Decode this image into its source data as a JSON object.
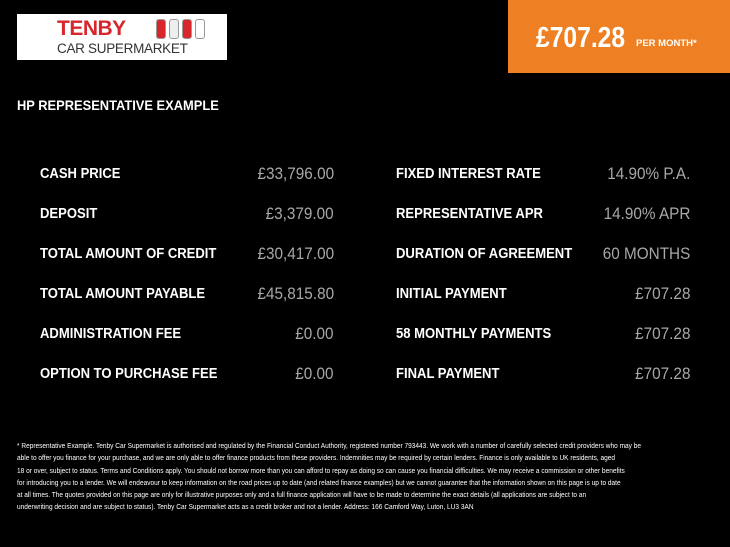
{
  "logo": {
    "line1": "TENBY",
    "line2": "CAR SUPERMARKET"
  },
  "badge": {
    "price": "£707.28",
    "per": "PER MONTH*",
    "color": "#ee7f22"
  },
  "heading": "HP REPRESENTATIVE EXAMPLE",
  "left": [
    {
      "label": "CASH PRICE",
      "value": "£33,796.00"
    },
    {
      "label": "DEPOSIT",
      "value": "£3,379.00"
    },
    {
      "label": "TOTAL AMOUNT OF CREDIT",
      "value": "£30,417.00"
    },
    {
      "label": "TOTAL AMOUNT PAYABLE",
      "value": "£45,815.80"
    },
    {
      "label": "ADMINISTRATION FEE",
      "value": "£0.00"
    },
    {
      "label": "OPTION TO PURCHASE FEE",
      "value": "£0.00"
    }
  ],
  "right": [
    {
      "label": "FIXED INTEREST RATE",
      "value": "14.90% P.A."
    },
    {
      "label": "REPRESENTATIVE APR",
      "value": "14.90% APR"
    },
    {
      "label": "DURATION OF AGREEMENT",
      "value": "60 MONTHS"
    },
    {
      "label": "INITIAL PAYMENT",
      "value": "£707.28"
    },
    {
      "label": "58 MONTHLY PAYMENTS",
      "value": "£707.28"
    },
    {
      "label": "FINAL PAYMENT",
      "value": "£707.28"
    }
  ],
  "footer": [
    "* Representative Example. Tenby Car Supermarket is authorised and regulated by the Financial Conduct Authority, registered number 793443. We work with a number of carefully selected credit providers who may be",
    "able to offer you finance for your purchase, and we are only able to offer finance products from these providers. Indemnities may be required by certain lenders. Finance is only available to UK residents, aged",
    "18 or over, subject to status. Terms and Conditions apply. You should not borrow more than you can afford to repay as doing so can cause you financial difficulties. We may receive a commission or other benefits",
    "for introducing you to a lender. We will endeavour to keep information on the road prices up to date (and related finance examples) but we cannot guarantee that the information shown on this page is up to date",
    "at all times. The quotes provided on this page are only for illustrative purposes only and a full finance application will have to be made to determine the exact details (all applications are subject to an",
    "underwriting decision and are subject to status). Tenby Car Supermarket acts as a credit broker and not a lender. Address: 166 Camford Way, Luton, LU3 3AN"
  ]
}
